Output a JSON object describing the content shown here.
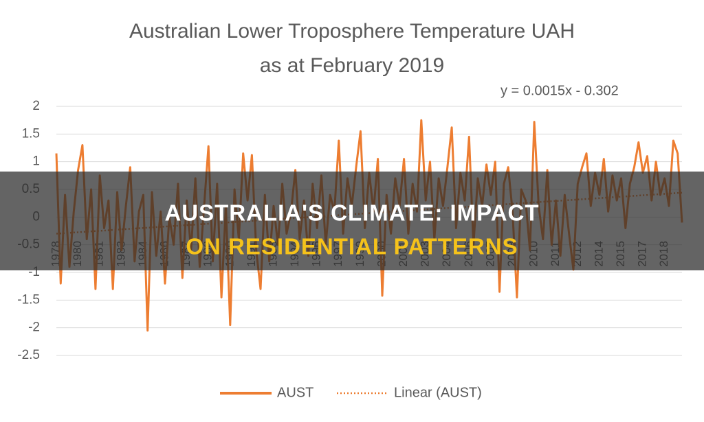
{
  "chart_data": {
    "type": "line",
    "title": "Australian Lower Troposphere Temperature UAH",
    "subtitle": "as at February 2019",
    "annotation": "y = 0.0015x - 0.302",
    "categories": [
      "1978",
      null,
      null,
      null,
      null,
      "1980",
      null,
      null,
      null,
      null,
      "1981",
      null,
      null,
      null,
      null,
      "1983",
      null,
      null,
      null,
      null,
      "1984",
      null,
      null,
      null,
      null,
      "1986",
      null,
      null,
      null,
      null,
      "1987",
      null,
      null,
      null,
      null,
      "1988",
      null,
      null,
      null,
      null,
      "1990",
      null,
      null,
      null,
      null,
      "1991",
      null,
      null,
      null,
      null,
      "1993",
      null,
      null,
      null,
      null,
      "1994",
      null,
      null,
      null,
      null,
      "1996",
      null,
      null,
      null,
      null,
      "1997",
      null,
      null,
      null,
      null,
      "1999",
      null,
      null,
      null,
      null,
      "2000",
      null,
      null,
      null,
      null,
      "2001",
      null,
      null,
      null,
      null,
      "2003",
      null,
      null,
      null,
      null,
      "2004",
      null,
      null,
      null,
      null,
      "2006",
      null,
      null,
      null,
      null,
      "2007",
      null,
      null,
      null,
      null,
      "2008",
      null,
      null,
      null,
      null,
      "2010",
      null,
      null,
      null,
      null,
      "2011",
      null,
      null,
      null,
      null,
      "2012",
      null,
      null,
      null,
      null,
      "2014",
      null,
      null,
      null,
      null,
      "2015",
      null,
      null,
      null,
      null,
      "2017",
      null,
      null,
      null,
      null,
      "2018",
      null,
      null,
      null,
      null
    ],
    "series": [
      {
        "name": "AUST",
        "color": "#ed7d31",
        "values": [
          1.15,
          -1.2,
          0.4,
          -0.9,
          0.1,
          0.85,
          1.3,
          -0.4,
          0.5,
          -1.3,
          0.75,
          -0.2,
          0.3,
          -1.3,
          0.45,
          -0.6,
          0.2,
          0.9,
          -0.8,
          0.1,
          0.4,
          -2.05,
          0.45,
          -0.7,
          0.1,
          -1.2,
          0.0,
          -0.5,
          0.6,
          -1.1,
          0.3,
          -0.6,
          0.7,
          -0.9,
          0.2,
          1.28,
          -0.8,
          0.6,
          -1.45,
          0.2,
          -1.95,
          0.5,
          -0.4,
          1.15,
          0.3,
          1.12,
          -0.6,
          -1.3,
          0.4,
          -0.8,
          0.2,
          -0.5,
          0.6,
          -0.3,
          0.1,
          0.85,
          -0.4,
          0.3,
          -0.7,
          0.6,
          -0.2,
          0.75,
          -0.5,
          0.4,
          0.1,
          1.38,
          -0.3,
          0.7,
          0.2,
          0.9,
          1.55,
          -0.2,
          0.8,
          0.1,
          1.05,
          -1.42,
          0.4,
          -0.3,
          0.7,
          0.2,
          1.05,
          -0.3,
          0.6,
          0.1,
          1.75,
          0.3,
          1.0,
          -0.4,
          0.7,
          0.2,
          0.9,
          1.62,
          -0.2,
          0.8,
          0.3,
          1.45,
          -0.5,
          0.7,
          0.2,
          0.95,
          0.4,
          1.0,
          -1.35,
          0.6,
          0.9,
          0.1,
          -1.45,
          0.5,
          0.3,
          -0.6,
          1.72,
          0.2,
          -0.4,
          0.85,
          -0.5,
          0.3,
          -0.7,
          0.4,
          -0.3,
          -0.95,
          0.6,
          0.9,
          1.15,
          0.2,
          0.8,
          0.4,
          1.05,
          0.1,
          0.75,
          0.3,
          0.7,
          -0.2,
          0.6,
          0.9,
          1.35,
          0.8,
          1.1,
          0.3,
          1.0,
          0.4,
          0.7,
          0.2,
          1.38,
          1.15,
          -0.1
        ]
      }
    ],
    "trendline": {
      "name": "Linear (AUST)",
      "color": "#ed7d31",
      "start": -0.3,
      "end": 0.44
    },
    "ylim": [
      -2.5,
      2
    ],
    "yticks": [
      2,
      1.5,
      1,
      0.5,
      0,
      -0.5,
      -1,
      -1.5,
      -2,
      -2.5
    ],
    "grid": true,
    "legend": "bottom"
  },
  "banner": {
    "line1": "AUSTRALIA'S CLIMATE: IMPACT",
    "line2": "ON RESIDENTIAL PATTERNS"
  }
}
